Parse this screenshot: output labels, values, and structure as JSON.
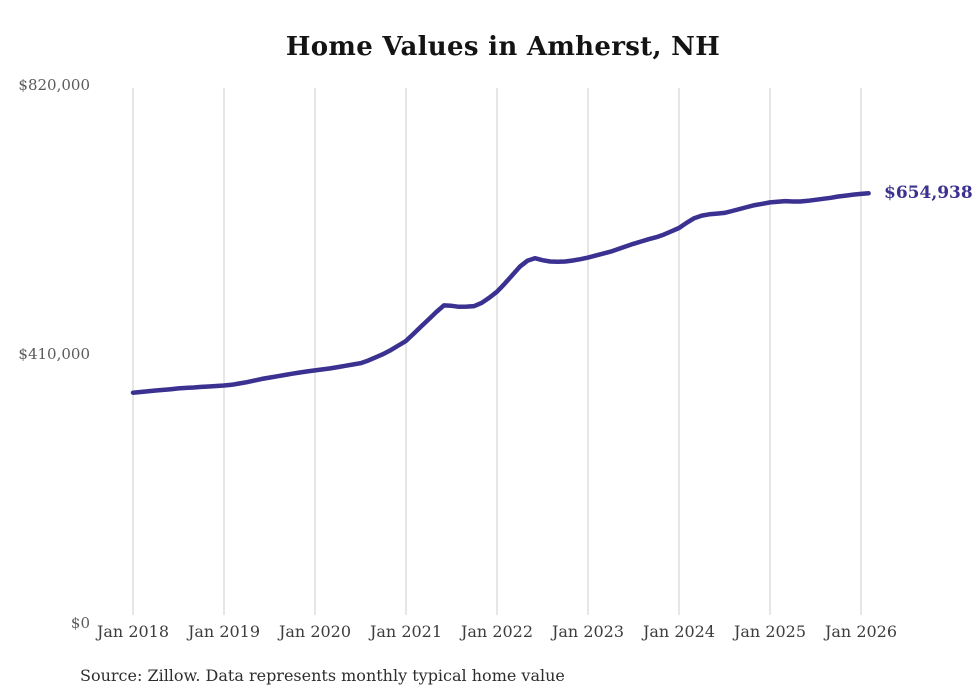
{
  "page": {
    "title": "Home Values in Amherst, NH",
    "source_note": "Source: Zillow. Data represents monthly typical home value"
  },
  "colors": {
    "line": "#3a3191",
    "end_label": "#3a3191",
    "grid": "#cccccc",
    "y_label": "#5a5a5a",
    "x_label": "#3d3d3d",
    "title": "#141414",
    "source": "#2e2e2e"
  },
  "chart_data": {
    "type": "line",
    "title": "Home Values in Amherst, NH",
    "xlabel": "",
    "ylabel": "",
    "ylim": [
      0,
      820000
    ],
    "grid": "vertical-only",
    "legend": "none",
    "x_start_month": "Jan 2018",
    "x_end_month": "Feb 2026",
    "months_per_point": 1,
    "x_tick_every_months": 12,
    "x_tick_labels": [
      "Jan 2018",
      "Jan 2019",
      "Jan 2020",
      "Jan 2021",
      "Jan 2022",
      "Jan 2023",
      "Jan 2024",
      "Jan 2025",
      "Jan 2026"
    ],
    "y_tick_labels": [
      {
        "label": "$820,000",
        "value": 820000
      },
      {
        "label": "$410,000",
        "value": 410000
      },
      {
        "label": "$0",
        "value": 0
      }
    ],
    "end_label": "$654,938",
    "end_value": 654938,
    "series": [
      {
        "name": "Monthly typical home value",
        "values": [
          351000,
          352100,
          353200,
          354300,
          355300,
          356400,
          357500,
          358300,
          359000,
          359800,
          360500,
          361300,
          362000,
          363000,
          365000,
          367000,
          369500,
          372000,
          374000,
          376000,
          378000,
          380000,
          381800,
          383500,
          385000,
          386500,
          388000,
          390000,
          392000,
          394000,
          396000,
          400000,
          405000,
          410000,
          416000,
          423000,
          430000,
          441000,
          452000,
          463000,
          474000,
          484000,
          483500,
          482000,
          482300,
          483000,
          488000,
          496000,
          505000,
          517000,
          530000,
          543000,
          552000,
          556000,
          553000,
          551000,
          550500,
          551000,
          552500,
          554500,
          557000,
          560000,
          563000,
          566000,
          570000,
          574000,
          578000,
          581500,
          585000,
          588000,
          592000,
          597000,
          602000,
          610000,
          617000,
          621000,
          623000,
          624000,
          625000,
          628000,
          631000,
          634000,
          637000,
          639000,
          641000,
          642000,
          643000,
          642500,
          642500,
          643500,
          645000,
          646500,
          648000,
          650000,
          651500,
          653000,
          654000,
          654938
        ]
      }
    ]
  }
}
